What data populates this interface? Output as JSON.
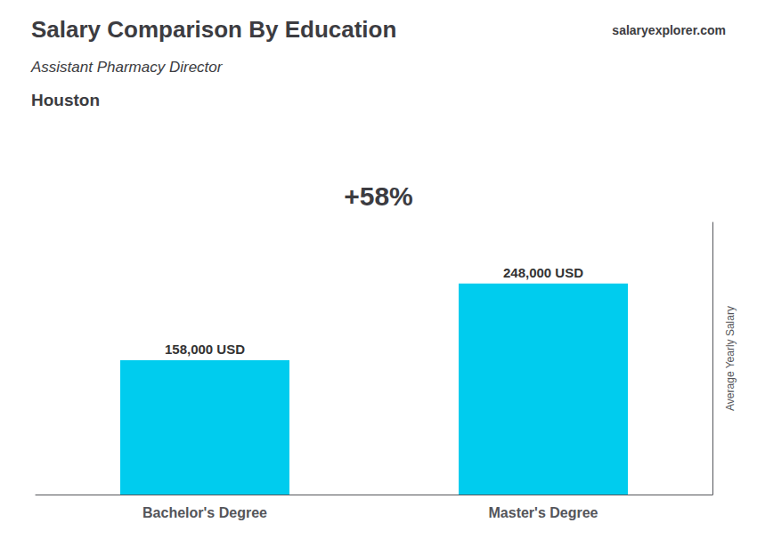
{
  "chart_data": {
    "type": "bar",
    "title": "Salary Comparison By Education",
    "subtitle": "Assistant Pharmacy Director",
    "annotations": [
      "Houston",
      "+58%",
      "salaryexplorer.com"
    ],
    "ylabel": "Average Yearly Salary",
    "categories": [
      "Bachelor's Degree",
      "Master's Degree"
    ],
    "values": [
      158000,
      248000
    ],
    "value_labels": [
      "158,000 USD",
      "248,000 USD"
    ],
    "data_labels": true,
    "color": "#00CCEE",
    "ylim": [
      0,
      320000
    ],
    "tick_labels": "x",
    "grid": false
  }
}
